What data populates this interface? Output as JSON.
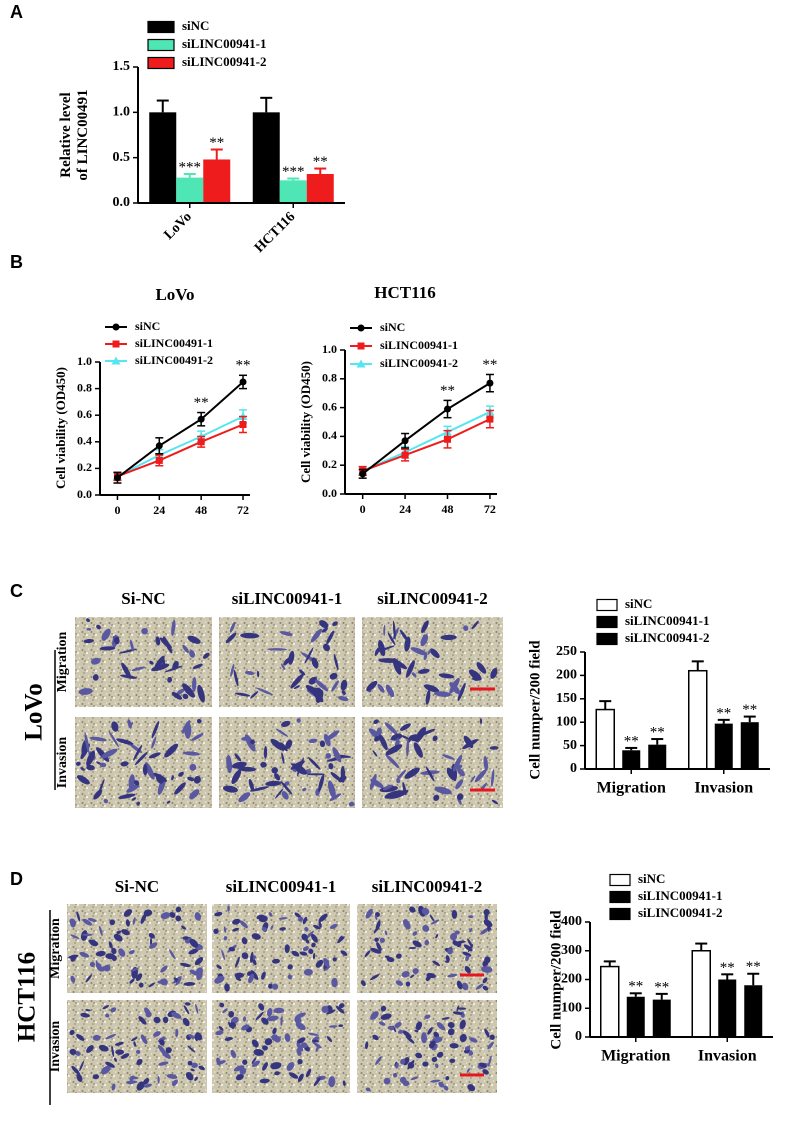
{
  "panel_labels": [
    "A",
    "B",
    "C",
    "D"
  ],
  "chart_data": [
    {
      "type": "bar",
      "ylabel_lines": [
        "Relative level",
        "of LINC00491"
      ],
      "categories": [
        "LoVo",
        "HCT116"
      ],
      "series": [
        {
          "name": "siNC",
          "color": "#000000",
          "values": [
            1.0,
            1.0
          ],
          "errors": [
            0.13,
            0.16
          ]
        },
        {
          "name": "siLINC00941-1",
          "color": "#4ee6b4",
          "values": [
            0.28,
            0.25
          ],
          "errors": [
            0.04,
            0.02
          ],
          "annotations": [
            "***",
            "***"
          ]
        },
        {
          "name": "siLINC00941-2",
          "color": "#ee1c1c",
          "values": [
            0.48,
            0.32
          ],
          "errors": [
            0.11,
            0.06
          ],
          "annotations": [
            "**",
            "**"
          ]
        }
      ],
      "ylim": [
        0,
        1.5
      ],
      "yticks": [
        {
          "value": 0,
          "label": "0.0"
        },
        0.5,
        {
          "value": 1,
          "label": "1.0"
        },
        1.5
      ],
      "xtick_rotation": -45,
      "legend": "top-left"
    },
    {
      "type": "line",
      "title": "LoVo",
      "ylabel_lines": [
        "Cell viability (OD450)"
      ],
      "x": [
        0,
        24,
        48,
        72
      ],
      "series": [
        {
          "name": "siNC",
          "color": "#000000",
          "marker": "circle",
          "values": [
            0.13,
            0.37,
            0.57,
            0.85
          ],
          "errors": [
            0.04,
            0.06,
            0.05,
            0.05
          ],
          "annotations": [
            null,
            null,
            "**",
            "**"
          ]
        },
        {
          "name": "siLINC00491-1",
          "color": "#ee1c1c",
          "marker": "square",
          "values": [
            0.14,
            0.26,
            0.4,
            0.53
          ],
          "errors": [
            0.03,
            0.04,
            0.04,
            0.06
          ]
        },
        {
          "name": "siLINC00491-2",
          "color": "#55e6f0",
          "marker": "triangle",
          "values": [
            0.14,
            0.3,
            0.44,
            0.59
          ],
          "errors": [
            0.03,
            0.04,
            0.04,
            0.05
          ]
        }
      ],
      "xlim": [
        -10,
        76
      ],
      "xticks": [
        0,
        24,
        48,
        72
      ],
      "ylim": [
        0,
        1.0
      ],
      "yticks": [
        {
          "value": 0,
          "label": "0.0"
        },
        0.2,
        0.4,
        0.6,
        0.8,
        {
          "value": 1,
          "label": "1.0"
        }
      ],
      "legend": "top-left"
    },
    {
      "type": "line",
      "title": "HCT116",
      "ylabel_lines": [
        "Cell viability (OD450)"
      ],
      "x": [
        0,
        24,
        48,
        72
      ],
      "series": [
        {
          "name": "siNC",
          "color": "#000000",
          "marker": "circle",
          "values": [
            0.14,
            0.37,
            0.59,
            0.77
          ],
          "errors": [
            0.03,
            0.05,
            0.06,
            0.06
          ],
          "annotations": [
            null,
            null,
            "**",
            "**"
          ]
        },
        {
          "name": "siLINC00941-1",
          "color": "#ee1c1c",
          "marker": "square",
          "values": [
            0.16,
            0.27,
            0.38,
            0.52
          ],
          "errors": [
            0.03,
            0.04,
            0.06,
            0.06
          ]
        },
        {
          "name": "siLINC00941-2",
          "color": "#55e6f0",
          "marker": "triangle",
          "values": [
            0.16,
            0.29,
            0.43,
            0.57
          ],
          "errors": [
            0.03,
            0.04,
            0.04,
            0.04
          ]
        }
      ],
      "xlim": [
        -10,
        76
      ],
      "xticks": [
        0,
        24,
        48,
        72
      ],
      "ylim": [
        0,
        1.0
      ],
      "yticks": [
        {
          "value": 0,
          "label": "0.0"
        },
        0.2,
        0.4,
        0.6,
        0.8,
        {
          "value": 1,
          "label": "1.0"
        }
      ],
      "legend": "top-left"
    },
    {
      "type": "bar",
      "ylabel_lines": [
        "Cell numper/200 field"
      ],
      "categories": [
        "Migration",
        "Invasion"
      ],
      "series": [
        {
          "name": "siNC",
          "color": "#ffffff",
          "values": [
            127,
            210
          ],
          "errors": [
            18,
            20
          ]
        },
        {
          "name": "siLINC00941-1",
          "color": "#000000",
          "values": [
            40,
            97
          ],
          "errors": [
            5,
            8
          ],
          "annotations": [
            "**",
            "**"
          ]
        },
        {
          "name": "siLINC00941-2",
          "color": "#000000",
          "values": [
            52,
            100
          ],
          "errors": [
            12,
            12
          ],
          "annotations": [
            "**",
            "**"
          ]
        }
      ],
      "ylim": [
        0,
        250
      ],
      "yticks": [
        0,
        50,
        100,
        150,
        200,
        250
      ],
      "xtick_rotation": 0,
      "legend": "top-left"
    },
    {
      "type": "bar",
      "ylabel_lines": [
        "Cell numper/200 field"
      ],
      "categories": [
        "Migration",
        "Invasion"
      ],
      "series": [
        {
          "name": "siNC",
          "color": "#ffffff",
          "values": [
            245,
            300
          ],
          "errors": [
            18,
            25
          ]
        },
        {
          "name": "siLINC00941-1",
          "color": "#000000",
          "values": [
            140,
            200
          ],
          "errors": [
            12,
            18
          ],
          "annotations": [
            "**",
            "**"
          ]
        },
        {
          "name": "siLINC00941-2",
          "color": "#000000",
          "values": [
            130,
            180
          ],
          "errors": [
            20,
            40
          ],
          "annotations": [
            "**",
            "**"
          ]
        }
      ],
      "ylim": [
        0,
        400
      ],
      "yticks": [
        0,
        100,
        200,
        300,
        400
      ],
      "xtick_rotation": 0,
      "legend": "top-left"
    }
  ],
  "image_grids": [
    {
      "cell_line": "LoVo",
      "columns": [
        "Si-NC",
        "siLINC00941-1",
        "siLINC00941-2"
      ],
      "rows": [
        "Migration",
        "Invasion"
      ]
    },
    {
      "cell_line": "HCT116",
      "columns": [
        "Si-NC",
        "siLINC00941-1",
        "siLINC00941-2"
      ],
      "rows": [
        "Migration",
        "Invasion"
      ]
    }
  ]
}
